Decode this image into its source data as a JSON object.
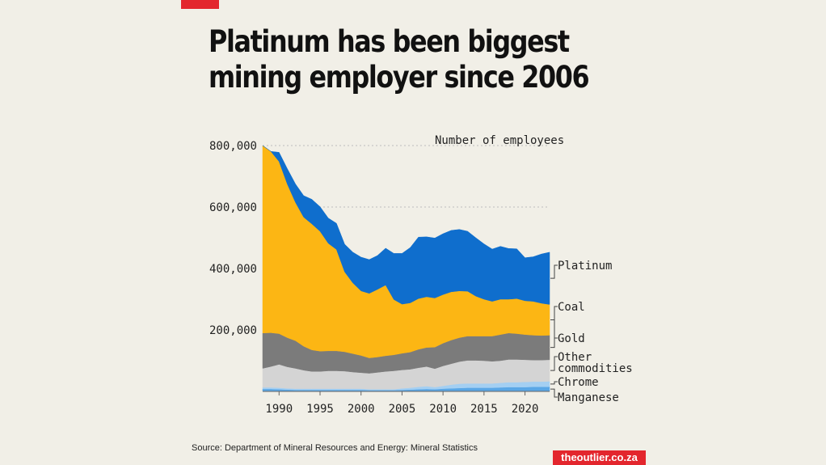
{
  "title": "Platinum has been biggest mining employer since 2006",
  "source": "Source: Department of Mineral Resources and Energy: Mineral Statistics",
  "brand": "theoutlier.co.za",
  "chart_data": {
    "type": "area",
    "ylabel": "Number of employees",
    "ylim": [
      0,
      800000
    ],
    "yticks": [
      200000,
      400000,
      600000,
      800000
    ],
    "ytick_labels": [
      "200,000",
      "400,000",
      "600,000",
      "800,000"
    ],
    "xlim": [
      1988,
      2023
    ],
    "xticks": [
      1990,
      1995,
      2000,
      2005,
      2010,
      2015,
      2020
    ],
    "grid": "horizontal dotted",
    "legend": "labels at right end",
    "x": [
      1988,
      1989,
      1990,
      1991,
      1992,
      1993,
      1994,
      1995,
      1996,
      1997,
      1998,
      1999,
      2000,
      2001,
      2002,
      2003,
      2004,
      2005,
      2006,
      2007,
      2008,
      2009,
      2010,
      2011,
      2012,
      2013,
      2014,
      2015,
      2016,
      2017,
      2018,
      2019,
      2020,
      2021,
      2022,
      2023
    ],
    "series": [
      {
        "name": "Manganese",
        "color": "#5aa7e6",
        "values": [
          8000,
          8000,
          7000,
          6000,
          5000,
          5000,
          5000,
          5000,
          5000,
          5000,
          5000,
          5000,
          5000,
          4000,
          4000,
          4000,
          4000,
          5000,
          6000,
          7000,
          8000,
          7000,
          9000,
          10000,
          11000,
          12000,
          12000,
          12000,
          12000,
          13000,
          14000,
          14000,
          14000,
          15000,
          15000,
          15000
        ]
      },
      {
        "name": "Chrome",
        "color": "#a4cff2",
        "values": [
          5000,
          5000,
          5000,
          4000,
          4000,
          4000,
          4000,
          4000,
          4000,
          4000,
          4000,
          4000,
          4000,
          3000,
          3000,
          3000,
          3000,
          5000,
          6000,
          8000,
          9000,
          7000,
          9000,
          12000,
          14000,
          14000,
          14000,
          14000,
          14000,
          15000,
          16000,
          16000,
          17000,
          17000,
          17000,
          18000
        ]
      },
      {
        "name": "Other commodities",
        "color": "#d4d4d4",
        "values": [
          62000,
          68000,
          76000,
          70000,
          66000,
          60000,
          56000,
          56000,
          58000,
          58000,
          57000,
          54000,
          52000,
          52000,
          55000,
          58000,
          60000,
          60000,
          60000,
          62000,
          64000,
          60000,
          65000,
          68000,
          72000,
          75000,
          75000,
          74000,
          72000,
          72000,
          74000,
          74000,
          72000,
          70000,
          70000,
          70000
        ]
      },
      {
        "name": "Coal",
        "color": "#7b7b7b",
        "values": [
          115000,
          110000,
          100000,
          95000,
          90000,
          78000,
          70000,
          66000,
          65000,
          65000,
          63000,
          60000,
          56000,
          50000,
          50000,
          51000,
          52000,
          54000,
          56000,
          60000,
          62000,
          70000,
          74000,
          77000,
          78000,
          79000,
          79000,
          80000,
          82000,
          85000,
          86000,
          84000,
          82000,
          81000,
          80000,
          80000
        ]
      },
      {
        "name": "Gold",
        "color": "#fcb614",
        "values": [
          610000,
          590000,
          560000,
          500000,
          450000,
          420000,
          410000,
          390000,
          350000,
          330000,
          260000,
          230000,
          210000,
          210000,
          220000,
          230000,
          180000,
          160000,
          160000,
          165000,
          165000,
          160000,
          158000,
          157000,
          152000,
          146000,
          130000,
          120000,
          113000,
          115000,
          110000,
          114000,
          110000,
          110000,
          105000,
          100000
        ]
      },
      {
        "name": "Platinum",
        "color": "#0f6ecd",
        "values": [
          0,
          0,
          30000,
          50000,
          60000,
          70000,
          80000,
          80000,
          82000,
          85000,
          90000,
          100000,
          110000,
          110000,
          110000,
          120000,
          150000,
          165000,
          180000,
          200000,
          195000,
          195000,
          198000,
          200000,
          200000,
          195000,
          190000,
          180000,
          170000,
          172000,
          165000,
          162000,
          140000,
          145000,
          160000,
          170000
        ]
      }
    ],
    "labels": [
      "Platinum",
      "Coal",
      "Gold",
      "Other\ncommodities",
      "Chrome",
      "Manganese"
    ]
  }
}
